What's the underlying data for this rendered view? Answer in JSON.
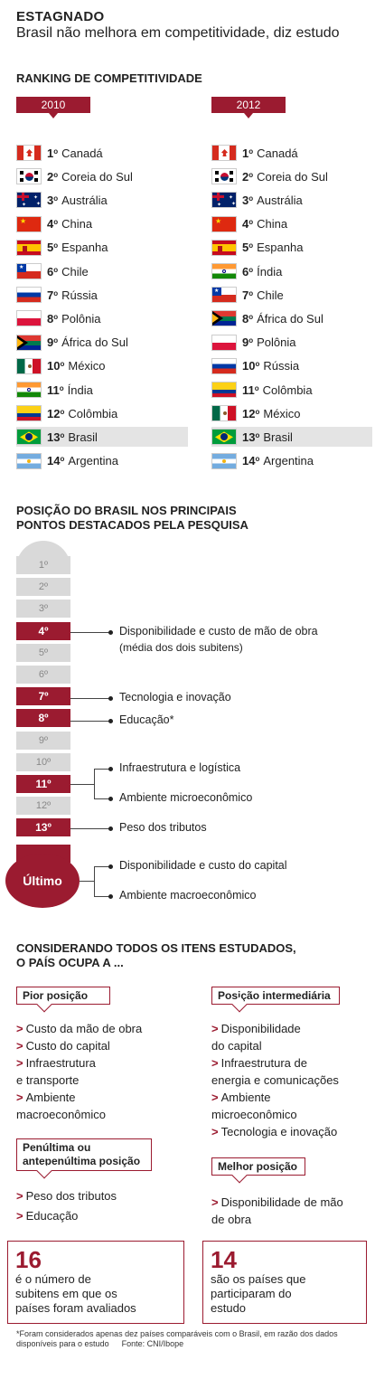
{
  "header": {
    "title": "ESTAGNADO",
    "subtitle": "Brasil não melhora em competitividade, diz estudo"
  },
  "ranking": {
    "section_title": "RANKING DE COMPETITIVIDADE",
    "suffix": "o",
    "columns": [
      {
        "year": "2010",
        "rows": [
          {
            "pos": "1",
            "country": "Canadá",
            "flag": "canada",
            "highlight": false
          },
          {
            "pos": "2",
            "country": "Coreia do Sul",
            "flag": "korea",
            "highlight": false
          },
          {
            "pos": "3",
            "country": "Austrália",
            "flag": "australia",
            "highlight": false
          },
          {
            "pos": "4",
            "country": "China",
            "flag": "china",
            "highlight": false
          },
          {
            "pos": "5",
            "country": "Espanha",
            "flag": "spain",
            "highlight": false
          },
          {
            "pos": "6",
            "country": "Chile",
            "flag": "chile",
            "highlight": false
          },
          {
            "pos": "7",
            "country": "Rússia",
            "flag": "russia",
            "highlight": false
          },
          {
            "pos": "8",
            "country": "Polônia",
            "flag": "poland",
            "highlight": false
          },
          {
            "pos": "9",
            "country": "África do Sul",
            "flag": "southafrica",
            "highlight": false
          },
          {
            "pos": "10",
            "country": "México",
            "flag": "mexico",
            "highlight": false
          },
          {
            "pos": "11",
            "country": "Índia",
            "flag": "india",
            "highlight": false
          },
          {
            "pos": "12",
            "country": "Colômbia",
            "flag": "colombia",
            "highlight": false
          },
          {
            "pos": "13",
            "country": "Brasil",
            "flag": "brazil",
            "highlight": true
          },
          {
            "pos": "14",
            "country": "Argentina",
            "flag": "argentina",
            "highlight": false
          }
        ]
      },
      {
        "year": "2012",
        "rows": [
          {
            "pos": "1",
            "country": "Canadá",
            "flag": "canada",
            "highlight": false
          },
          {
            "pos": "2",
            "country": "Coreia do Sul",
            "flag": "korea",
            "highlight": false
          },
          {
            "pos": "3",
            "country": "Austrália",
            "flag": "australia",
            "highlight": false
          },
          {
            "pos": "4",
            "country": "China",
            "flag": "china",
            "highlight": false
          },
          {
            "pos": "5",
            "country": "Espanha",
            "flag": "spain",
            "highlight": false
          },
          {
            "pos": "6",
            "country": "Índia",
            "flag": "india",
            "highlight": false
          },
          {
            "pos": "7",
            "country": "Chile",
            "flag": "chile",
            "highlight": false
          },
          {
            "pos": "8",
            "country": "África do Sul",
            "flag": "southafrica",
            "highlight": false
          },
          {
            "pos": "9",
            "country": "Polônia",
            "flag": "poland",
            "highlight": false
          },
          {
            "pos": "10",
            "country": "Rússia",
            "flag": "russia",
            "highlight": false
          },
          {
            "pos": "11",
            "country": "Colômbia",
            "flag": "colombia",
            "highlight": false
          },
          {
            "pos": "12",
            "country": "México",
            "flag": "mexico",
            "highlight": false
          },
          {
            "pos": "13",
            "country": "Brasil",
            "flag": "brazil",
            "highlight": true
          },
          {
            "pos": "14",
            "country": "Argentina",
            "flag": "argentina",
            "highlight": false
          }
        ]
      }
    ]
  },
  "brazil_position": {
    "title_line1": "POSIÇÃO DO BRASIL NOS PRINCIPAIS",
    "title_line2": "PONTOS DESTACADOS PELA PESQUISA",
    "scale": [
      {
        "label": "1º",
        "highlight": false
      },
      {
        "label": "2º",
        "highlight": false
      },
      {
        "label": "3º",
        "highlight": false
      },
      {
        "label": "4º",
        "highlight": true
      },
      {
        "label": "5º",
        "highlight": false
      },
      {
        "label": "6º",
        "highlight": false
      },
      {
        "label": "7º",
        "highlight": true
      },
      {
        "label": "8º",
        "highlight": true
      },
      {
        "label": "9º",
        "highlight": false
      },
      {
        "label": "10º",
        "highlight": false
      },
      {
        "label": "11º",
        "highlight": true
      },
      {
        "label": "12º",
        "highlight": false
      },
      {
        "label": "13º",
        "highlight": true
      }
    ],
    "last_label": "Último",
    "items": {
      "pos4_line1": "Disponibilidade e custo de mão de obra",
      "pos4_line2": "(média dos dois subitens)",
      "pos7": "Tecnologia e inovação",
      "pos8": "Educação*",
      "pos11_a": "Infraestrutura e logística",
      "pos11_b": "Ambiente microeconômico",
      "pos13": "Peso dos tributos",
      "last_a": "Disponibilidade e custo do capital",
      "last_b": "Ambiente macroeconômico"
    }
  },
  "occupies": {
    "title_line1": "CONSIDERANDO TODOS OS ITENS ESTUDADOS,",
    "title_line2": "O PAÍS OCUPA A ...",
    "chevron": ">",
    "worst": {
      "label": "Pior posição",
      "items": [
        "Custo da mão de obra",
        "Custo do capital",
        "Infraestrutura",
        "e transporte",
        "Ambiente",
        "macroeconômico"
      ]
    },
    "intermediate": {
      "label": "Posição intermediária",
      "items": [
        "Disponibilidade",
        "do capital",
        "Infraestrutura de",
        "energia e comunicações",
        "Ambiente",
        "microeconômico",
        "Tecnologia e inovação"
      ]
    },
    "second_worst": {
      "label_line1": "Penúltima ou",
      "label_line2": "antepenúltima posição",
      "items": [
        "Peso dos tributos",
        "Educação"
      ]
    },
    "best": {
      "label": "Melhor posição",
      "items": [
        "Disponibilidade de mão",
        "de obra"
      ]
    }
  },
  "stats": [
    {
      "number": "16",
      "line1": "é o número de",
      "line2": "subitens em que os",
      "line3": "países foram avaliados"
    },
    {
      "number": "14",
      "line1": "são os países que",
      "line2": "participaram do",
      "line3": "estudo"
    }
  ],
  "footnote": {
    "line1": "*Foram considerados apenas dez países comparáveis com o Brasil, em razão dos dados",
    "line2": "disponíveis para o estudo",
    "source": "Fonte: CNI/Ibope"
  },
  "colors": {
    "accent": "#9b1b30",
    "grey": "#d9d9d9",
    "highlight_row": "#e4e4e4"
  }
}
